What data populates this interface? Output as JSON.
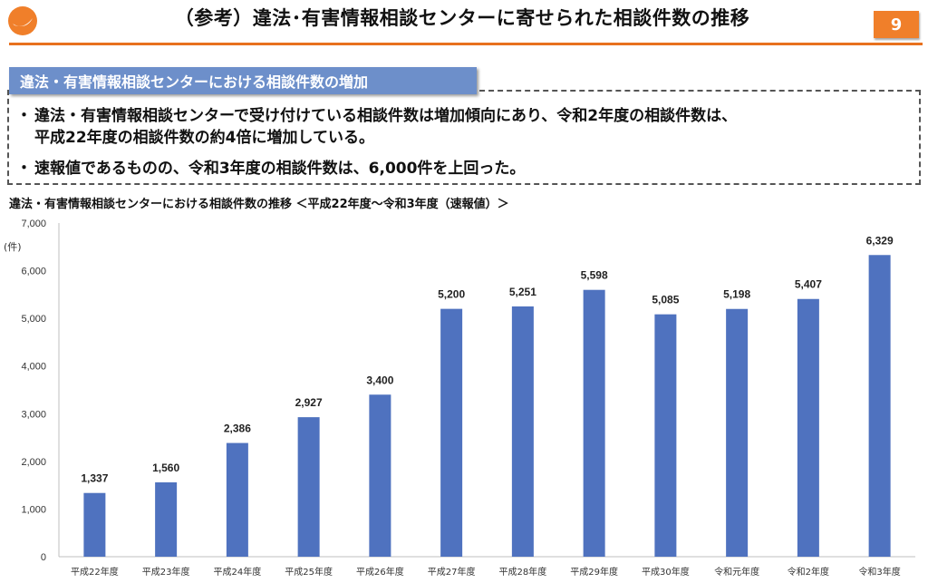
{
  "header": {
    "title": "（参考）違法･有害情報相談センターに寄せられた相談件数の推移",
    "page_number": "9",
    "accent_color": "#e8711e",
    "logo_icon": "orange-circle-logo-icon"
  },
  "section": {
    "heading": "違法・有害情報相談センターにおける相談件数の増加",
    "heading_bg": "#6d8fca",
    "bullets": [
      {
        "marker": "・",
        "line1": "違法・有害情報相談センターで受け付けている相談件数は増加傾向にあり、令和2年度の相談件数は、",
        "line2": "平成22年度の相談件数の約4倍に増加している。"
      },
      {
        "marker": "・",
        "line1": "速報値であるものの、令和3年度の相談件数は、6,000件を上回った。"
      }
    ]
  },
  "chart_data": {
    "type": "bar",
    "title": "違法・有害情報相談センターにおける相談件数の推移 ＜平成22年度～令和3年度（速報値）＞",
    "ylabel": "(件)",
    "xlabel": "",
    "ylim": [
      0,
      7000
    ],
    "yticks": [
      0,
      1000,
      2000,
      3000,
      4000,
      5000,
      6000,
      7000
    ],
    "ytick_labels": [
      "0",
      "1,000",
      "2,000",
      "3,000",
      "4,000",
      "5,000",
      "6,000",
      "7,000"
    ],
    "grid": false,
    "bar_color": "#4f72bf",
    "categories": [
      "平成22年度",
      "平成23年度",
      "平成24年度",
      "平成25年度",
      "平成26年度",
      "平成27年度",
      "平成28年度",
      "平成29年度",
      "平成30年度",
      "令和元年度",
      "令和2年度",
      "令和3年度"
    ],
    "values": [
      1337,
      1560,
      2386,
      2927,
      3400,
      5200,
      5251,
      5598,
      5085,
      5198,
      5407,
      6329
    ],
    "value_labels": [
      "1,337",
      "1,560",
      "2,386",
      "2,927",
      "3,400",
      "5,200",
      "5,251",
      "5,598",
      "5,085",
      "5,198",
      "5,407",
      "6,329"
    ]
  }
}
